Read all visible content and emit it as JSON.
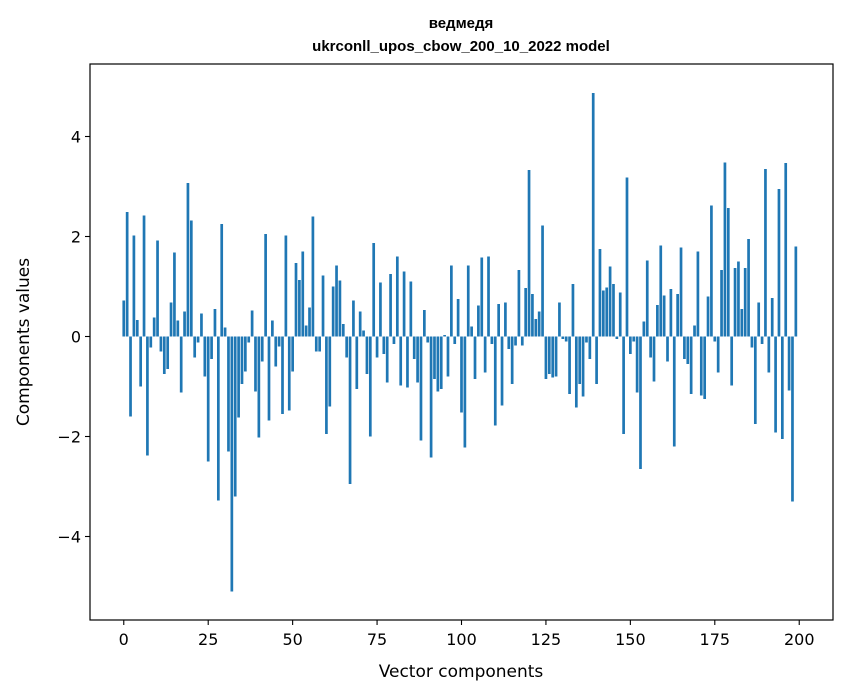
{
  "chart_data": {
    "type": "bar",
    "title_line1": "ведмедя",
    "title_line2": "ukrconll_upos_cbow_200_10_2022 model",
    "xlabel": "Vector components",
    "ylabel": "Components values",
    "xlim": [
      -10,
      210
    ],
    "ylim": [
      -5.67,
      5.45
    ],
    "xticks": [
      0,
      25,
      50,
      75,
      100,
      125,
      150,
      175,
      200
    ],
    "yticks": [
      -4,
      -2,
      0,
      2,
      4
    ],
    "ytick_labels": [
      "−4",
      "−2",
      "0",
      "2",
      "4"
    ],
    "bar_color": "#1f77b4",
    "x": [
      0,
      1,
      2,
      3,
      4,
      5,
      6,
      7,
      8,
      9,
      10,
      11,
      12,
      13,
      14,
      15,
      16,
      17,
      18,
      19,
      20,
      21,
      22,
      23,
      24,
      25,
      26,
      27,
      28,
      29,
      30,
      31,
      32,
      33,
      34,
      35,
      36,
      37,
      38,
      39,
      40,
      41,
      42,
      43,
      44,
      45,
      46,
      47,
      48,
      49,
      50,
      51,
      52,
      53,
      54,
      55,
      56,
      57,
      58,
      59,
      60,
      61,
      62,
      63,
      64,
      65,
      66,
      67,
      68,
      69,
      70,
      71,
      72,
      73,
      74,
      75,
      76,
      77,
      78,
      79,
      80,
      81,
      82,
      83,
      84,
      85,
      86,
      87,
      88,
      89,
      90,
      91,
      92,
      93,
      94,
      95,
      96,
      97,
      98,
      99,
      100,
      101,
      102,
      103,
      104,
      105,
      106,
      107,
      108,
      109,
      110,
      111,
      112,
      113,
      114,
      115,
      116,
      117,
      118,
      119,
      120,
      121,
      122,
      123,
      124,
      125,
      126,
      127,
      128,
      129,
      130,
      131,
      132,
      133,
      134,
      135,
      136,
      137,
      138,
      139,
      140,
      141,
      142,
      143,
      144,
      145,
      146,
      147,
      148,
      149,
      150,
      151,
      152,
      153,
      154,
      155,
      156,
      157,
      158,
      159,
      160,
      161,
      162,
      163,
      164,
      165,
      166,
      167,
      168,
      169,
      170,
      171,
      172,
      173,
      174,
      175,
      176,
      177,
      178,
      179,
      180,
      181,
      182,
      183,
      184,
      185,
      186,
      187,
      188,
      189,
      190,
      191,
      192,
      193,
      194,
      195,
      196,
      197,
      198,
      199
    ],
    "values": [
      0.72,
      2.49,
      -1.6,
      2.02,
      0.33,
      -1.0,
      2.42,
      -2.38,
      -0.22,
      0.38,
      1.92,
      -0.3,
      -0.75,
      -0.65,
      0.68,
      1.68,
      0.32,
      -1.12,
      0.5,
      3.07,
      2.32,
      -0.42,
      -0.12,
      0.46,
      -0.8,
      -2.5,
      -0.45,
      0.55,
      -3.28,
      2.25,
      0.18,
      -2.3,
      -5.1,
      -3.2,
      -1.62,
      -0.95,
      -0.7,
      -0.12,
      0.52,
      -1.1,
      -2.02,
      -0.5,
      2.05,
      -1.68,
      0.32,
      -0.6,
      -0.2,
      -1.55,
      2.02,
      -1.48,
      -0.7,
      1.47,
      1.13,
      1.7,
      0.22,
      0.58,
      2.4,
      -0.3,
      -0.3,
      1.22,
      -1.95,
      -1.4,
      1.0,
      1.42,
      1.12,
      0.25,
      -0.42,
      -2.95,
      0.72,
      -1.05,
      0.5,
      0.12,
      -0.75,
      -2.0,
      1.87,
      -0.42,
      1.08,
      -0.35,
      -0.92,
      1.25,
      -0.15,
      1.6,
      -0.98,
      1.3,
      -1.02,
      1.1,
      -0.45,
      -0.92,
      -2.08,
      0.53,
      -0.12,
      -2.42,
      -0.85,
      -1.1,
      -1.05,
      0.03,
      -0.8,
      1.42,
      -0.15,
      0.75,
      -1.52,
      -2.22,
      1.42,
      0.2,
      -0.85,
      0.62,
      1.58,
      -0.72,
      1.6,
      -0.15,
      -1.78,
      0.65,
      -1.38,
      0.68,
      -0.25,
      -0.95,
      -0.18,
      1.33,
      -0.18,
      0.97,
      3.33,
      0.85,
      0.35,
      0.5,
      2.22,
      -0.85,
      -0.75,
      -0.82,
      -0.8,
      0.68,
      -0.05,
      -0.1,
      -1.15,
      1.05,
      -1.42,
      -0.95,
      -1.2,
      -0.12,
      -0.45,
      4.87,
      -0.95,
      1.75,
      0.92,
      0.98,
      1.4,
      1.05,
      -0.05,
      0.88,
      -1.95,
      3.18,
      -0.35,
      -0.1,
      -1.12,
      -2.65,
      0.3,
      1.52,
      -0.42,
      -0.9,
      0.63,
      1.82,
      0.82,
      -0.5,
      0.95,
      -2.2,
      0.85,
      1.78,
      -0.45,
      -0.55,
      -1.15,
      0.22,
      1.7,
      -1.18,
      -1.25,
      0.8,
      2.62,
      -0.1,
      -0.72,
      1.33,
      3.48,
      2.57,
      -0.98,
      1.37,
      1.5,
      0.55,
      1.37,
      1.95,
      -0.22,
      -1.75,
      0.68,
      -0.15,
      3.35,
      -0.72,
      0.77,
      -1.92,
      2.95,
      -2.05,
      3.47,
      -1.08,
      -3.3,
      1.8
    ]
  }
}
